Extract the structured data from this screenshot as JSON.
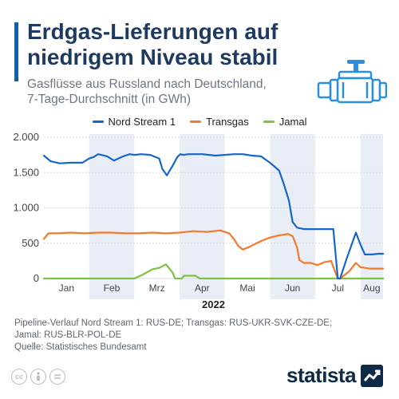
{
  "header": {
    "title_line1": "Erdgas-Lieferungen auf",
    "title_line2": "niedrigem Niveau stabil",
    "subtitle_line1": "Gasflüsse aus Russland nach Deutschland,",
    "subtitle_line2": "7-Tage-Durchschnitt (in GWh)"
  },
  "icons": {
    "pipe": "gas-pipeline-icon",
    "cc": "cc-icon",
    "by": "attribution-icon",
    "nd": "no-derivatives-icon",
    "brand": "statista-logo-icon"
  },
  "colors": {
    "accent": "#0f5fae",
    "nord_stream": "#1666cc",
    "transgas": "#f27a2c",
    "jamal": "#7cc242",
    "band": "#e9edf5"
  },
  "footnote": {
    "line1": "Pipeline-Verlauf Nord Stream 1: RUS-DE; Transgas: RUS-UKR-SVK-CZE-DE;",
    "line2": "Jamal: RUS-BLR-POL-DE",
    "line3": "Quelle: Statistisches Bundesamt"
  },
  "brand": {
    "name": "statista"
  },
  "chart_data": {
    "type": "line",
    "ylim": [
      0,
      2000
    ],
    "yticks": [
      0,
      500,
      1000,
      1500,
      2000
    ],
    "ytick_labels": [
      "0",
      "500",
      "1.000",
      "1.500",
      "2.000"
    ],
    "xlim": [
      0,
      7.5
    ],
    "months": [
      {
        "label": "Jan",
        "pos": 0.5,
        "shaded": false
      },
      {
        "label": "Feb",
        "pos": 1.5,
        "shaded": true
      },
      {
        "label": "Mrz",
        "pos": 2.5,
        "shaded": false
      },
      {
        "label": "Apr",
        "pos": 3.5,
        "shaded": true
      },
      {
        "label": "Mai",
        "pos": 4.5,
        "shaded": false
      },
      {
        "label": "Jun",
        "pos": 5.5,
        "shaded": true
      },
      {
        "label": "Jul",
        "pos": 6.5,
        "shaded": false
      },
      {
        "label": "Aug",
        "pos": 7.25,
        "shaded": true
      }
    ],
    "year_label": "2022",
    "grid": true,
    "legend_position": "top-center",
    "series": [
      {
        "name": "Nord Stream 1",
        "x": [
          0,
          0.15,
          0.35,
          0.6,
          0.85,
          1.0,
          1.1,
          1.2,
          1.4,
          1.55,
          1.75,
          1.9,
          2.0,
          2.15,
          2.35,
          2.55,
          2.62,
          2.72,
          2.85,
          2.95,
          3.02,
          3.08,
          3.2,
          3.5,
          3.8,
          4.2,
          4.4,
          4.6,
          4.8,
          5.0,
          5.2,
          5.3,
          5.42,
          5.5,
          5.6,
          5.75,
          5.9,
          6.1,
          6.3,
          6.4,
          6.5,
          6.55,
          6.7,
          6.9,
          7.0,
          7.1,
          7.25,
          7.4,
          7.5
        ],
        "y": [
          1740,
          1660,
          1630,
          1640,
          1640,
          1700,
          1720,
          1760,
          1730,
          1670,
          1730,
          1760,
          1750,
          1760,
          1750,
          1700,
          1550,
          1460,
          1600,
          1720,
          1760,
          1750,
          1760,
          1760,
          1740,
          1760,
          1760,
          1740,
          1730,
          1640,
          1530,
          1350,
          1100,
          800,
          720,
          700,
          700,
          700,
          700,
          700,
          0,
          0,
          290,
          650,
          480,
          340,
          340,
          350,
          350
        ]
      },
      {
        "name": "Transgas",
        "x": [
          0,
          0.1,
          0.3,
          0.6,
          0.9,
          1.2,
          1.5,
          1.8,
          2.1,
          2.4,
          2.7,
          3.0,
          3.3,
          3.6,
          3.9,
          4.1,
          4.2,
          4.3,
          4.4,
          4.55,
          4.8,
          5.0,
          5.2,
          5.4,
          5.5,
          5.6,
          5.65,
          5.75,
          5.9,
          6.05,
          6.2,
          6.35,
          6.5,
          6.55,
          6.75,
          6.9,
          7.0,
          7.2,
          7.5
        ],
        "y": [
          560,
          640,
          640,
          650,
          640,
          650,
          650,
          640,
          640,
          650,
          640,
          650,
          670,
          660,
          680,
          640,
          560,
          460,
          410,
          450,
          530,
          580,
          610,
          630,
          600,
          440,
          260,
          220,
          220,
          190,
          230,
          250,
          0,
          0,
          100,
          220,
          160,
          140,
          140
        ]
      },
      {
        "name": "Jamal",
        "x": [
          0,
          1.0,
          2.0,
          2.2,
          2.4,
          2.55,
          2.7,
          2.85,
          2.9,
          3.05,
          3.1,
          3.2,
          3.35,
          3.45,
          3.5,
          4.5,
          5.5,
          6.5,
          7.5
        ],
        "y": [
          0,
          0,
          0,
          60,
          130,
          150,
          200,
          80,
          0,
          0,
          40,
          40,
          40,
          0,
          0,
          0,
          0,
          0,
          0
        ]
      }
    ]
  }
}
